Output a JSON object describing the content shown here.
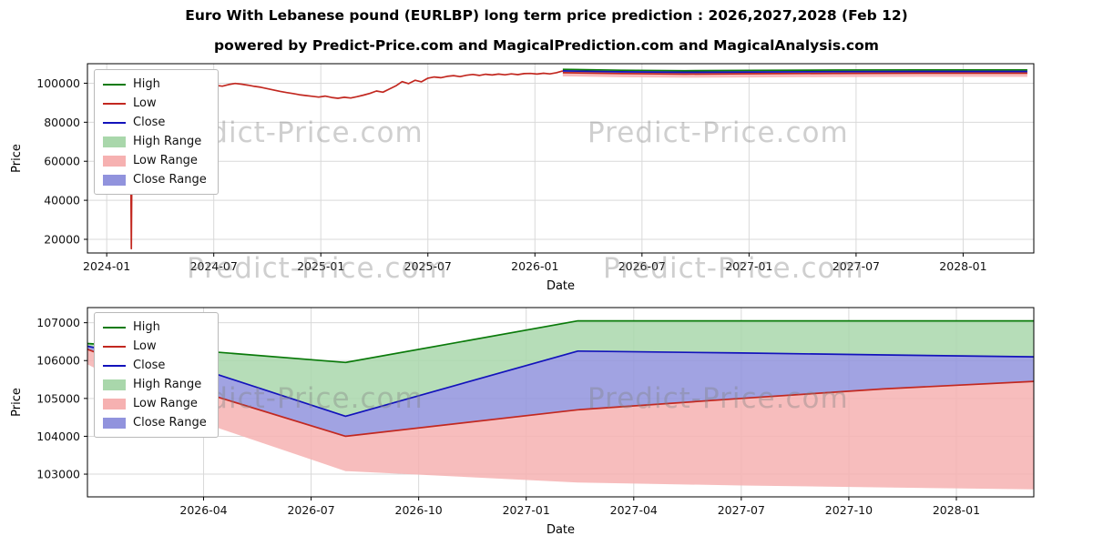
{
  "page": {
    "title": "Euro With Lebanese pound (EURLBP) long term price prediction : 2026,2027,2028 (Feb 12)",
    "subtitle": "powered by Predict-Price.com and MagicalPrediction.com and MagicalAnalysis.com",
    "watermark": "Predict-Price.com"
  },
  "colors": {
    "high": "#0a7a0a",
    "low": "#c22820",
    "close": "#1212bb",
    "high_range": "#a9d7ab",
    "low_range": "#f6b1b1",
    "close_range": "#9193dd",
    "grid": "#d9d9d9",
    "axis": "#000000",
    "text": "#111111",
    "watermark": "rgba(128,128,128,0.38)"
  },
  "chart_data": [
    {
      "type": "line",
      "title": "",
      "xlabel": "Date",
      "ylabel": "Price",
      "grid": true,
      "legend_position": "upper left",
      "xlim": [
        2023.91,
        2028.33
      ],
      "ylim": [
        13000,
        110000
      ],
      "xticks": [
        {
          "v": 2024.0,
          "label": "2024-01"
        },
        {
          "v": 2024.5,
          "label": "2024-07"
        },
        {
          "v": 2025.0,
          "label": "2025-01"
        },
        {
          "v": 2025.5,
          "label": "2025-07"
        },
        {
          "v": 2026.0,
          "label": "2026-01"
        },
        {
          "v": 2026.5,
          "label": "2026-07"
        },
        {
          "v": 2027.0,
          "label": "2027-01"
        },
        {
          "v": 2027.5,
          "label": "2027-07"
        },
        {
          "v": 2028.0,
          "label": "2028-01"
        }
      ],
      "yticks": [
        {
          "v": 20000,
          "label": "20000"
        },
        {
          "v": 40000,
          "label": "40000"
        },
        {
          "v": 60000,
          "label": "60000"
        },
        {
          "v": 80000,
          "label": "80000"
        },
        {
          "v": 100000,
          "label": "100000"
        }
      ],
      "legend": [
        {
          "label": "High",
          "kind": "line",
          "color_key": "high"
        },
        {
          "label": "Low",
          "kind": "line",
          "color_key": "low"
        },
        {
          "label": "Close",
          "kind": "line",
          "color_key": "close"
        },
        {
          "label": "High Range",
          "kind": "patch",
          "color_key": "high_range"
        },
        {
          "label": "Low Range",
          "kind": "patch",
          "color_key": "low_range"
        },
        {
          "label": "Close Range",
          "kind": "patch",
          "color_key": "close_range"
        }
      ],
      "bands": [
        {
          "name": "High Range",
          "color_key": "high_range",
          "x": [
            2026.13,
            2026.4,
            2026.7,
            2027.0,
            2027.4,
            2027.8,
            2028.3
          ],
          "top": [
            107100,
            106650,
            106400,
            106550,
            106750,
            106850,
            106850
          ],
          "bottom": [
            106300,
            105850,
            105600,
            105750,
            105950,
            106050,
            106050
          ]
        },
        {
          "name": "Low Range",
          "color_key": "low_range",
          "x": [
            2026.13,
            2026.4,
            2026.7,
            2027.0,
            2027.4,
            2027.8,
            2028.3
          ],
          "top": [
            105400,
            104950,
            104700,
            104850,
            105050,
            105150,
            105150
          ],
          "bottom": [
            103500,
            103050,
            102800,
            102950,
            103150,
            103250,
            103250
          ]
        },
        {
          "name": "Close Range",
          "color_key": "close_range",
          "x": [
            2026.13,
            2026.4,
            2026.7,
            2027.0,
            2027.4,
            2027.8,
            2028.3
          ],
          "top": [
            106300,
            105850,
            105600,
            105750,
            105950,
            106050,
            106050
          ],
          "bottom": [
            105400,
            104950,
            104700,
            104850,
            105050,
            105150,
            105150
          ]
        }
      ],
      "series": [
        {
          "name": "High",
          "color_key": "high",
          "segments": [
            {
              "x": [
                2024.375,
                2024.38,
                2024.385
              ],
              "y": [
                97200,
                101000,
                97600
              ]
            },
            {
              "x": [
                2026.13,
                2026.4,
                2026.7,
                2027.0,
                2027.4,
                2027.8,
                2028.3
              ],
              "y": [
                107100,
                106650,
                106400,
                106550,
                106750,
                106850,
                106850
              ]
            }
          ]
        },
        {
          "name": "Low",
          "color_key": "low",
          "segments": [
            {
              "x": [
                2024.11,
                2024.115,
                2024.12,
                2024.15,
                2024.18,
                2024.21,
                2024.24,
                2024.27,
                2024.3,
                2024.33,
                2024.36,
                2024.39,
                2024.42,
                2024.45,
                2024.48,
                2024.51,
                2024.54,
                2024.57,
                2024.6,
                2024.63,
                2024.66,
                2024.69,
                2024.72,
                2024.75,
                2024.78,
                2024.81,
                2024.84,
                2024.87,
                2024.9,
                2024.93,
                2024.96,
                2024.99,
                2025.02,
                2025.05,
                2025.08,
                2025.11,
                2025.14,
                2025.17,
                2025.2,
                2025.23,
                2025.26,
                2025.29,
                2025.32,
                2025.35,
                2025.38,
                2025.41,
                2025.44,
                2025.47,
                2025.5,
                2025.53,
                2025.56,
                2025.59,
                2025.62,
                2025.65,
                2025.68,
                2025.71,
                2025.74,
                2025.77,
                2025.8,
                2025.83,
                2025.86,
                2025.89,
                2025.92,
                2025.95,
                2025.98,
                2026.01,
                2026.04,
                2026.07,
                2026.1,
                2026.13
              ],
              "y": [
                96500,
                15200,
                97000,
                96600,
                97300,
                96800,
                97500,
                97000,
                97800,
                97200,
                97900,
                97400,
                98100,
                97700,
                98400,
                98900,
                98500,
                99300,
                99900,
                99500,
                99000,
                98400,
                97900,
                97200,
                96500,
                95800,
                95200,
                94700,
                94100,
                93700,
                93300,
                92900,
                93400,
                92700,
                92300,
                92800,
                92400,
                93100,
                93900,
                94800,
                96000,
                95400,
                97000,
                98600,
                100800,
                99800,
                101500,
                100700,
                102600,
                103200,
                102800,
                103500,
                103900,
                103400,
                104100,
                104500,
                104000,
                104600,
                104200,
                104700,
                104300,
                104800,
                104400,
                104900,
                105000,
                104700,
                105100,
                104800,
                105400,
                106300
              ]
            },
            {
              "x": [
                2026.13,
                2026.4,
                2026.7,
                2027.0,
                2027.4,
                2027.8,
                2028.3
              ],
              "y": [
                105400,
                104950,
                104700,
                104850,
                105050,
                105150,
                105150
              ]
            }
          ]
        },
        {
          "name": "Close",
          "color_key": "close",
          "segments": [
            {
              "x": [
                2026.13,
                2026.4,
                2026.7,
                2027.0,
                2027.4,
                2027.8,
                2028.3
              ],
              "y": [
                106300,
                105850,
                105600,
                105750,
                105950,
                106050,
                106050
              ]
            }
          ]
        }
      ]
    },
    {
      "type": "line",
      "title": "",
      "xlabel": "Date",
      "ylabel": "Price",
      "grid": true,
      "legend_position": "upper left",
      "xlim": [
        2025.98,
        2028.18
      ],
      "ylim": [
        102400,
        107400
      ],
      "xticks": [
        {
          "v": 2026.25,
          "label": "2026-04"
        },
        {
          "v": 2026.5,
          "label": "2026-07"
        },
        {
          "v": 2026.75,
          "label": "2026-10"
        },
        {
          "v": 2027.0,
          "label": "2027-01"
        },
        {
          "v": 2027.25,
          "label": "2027-04"
        },
        {
          "v": 2027.5,
          "label": "2027-07"
        },
        {
          "v": 2027.75,
          "label": "2027-10"
        },
        {
          "v": 2028.0,
          "label": "2028-01"
        }
      ],
      "yticks": [
        {
          "v": 103000,
          "label": "103000"
        },
        {
          "v": 104000,
          "label": "104000"
        },
        {
          "v": 105000,
          "label": "105000"
        },
        {
          "v": 106000,
          "label": "106000"
        },
        {
          "v": 107000,
          "label": "107000"
        }
      ],
      "legend": [
        {
          "label": "High",
          "kind": "line",
          "color_key": "high"
        },
        {
          "label": "Low",
          "kind": "line",
          "color_key": "low"
        },
        {
          "label": "Close",
          "kind": "line",
          "color_key": "close"
        },
        {
          "label": "High Range",
          "kind": "patch",
          "color_key": "high_range"
        },
        {
          "label": "Low Range",
          "kind": "patch",
          "color_key": "low_range"
        },
        {
          "label": "Close Range",
          "kind": "patch",
          "color_key": "close_range"
        }
      ],
      "bands": [
        {
          "name": "High Range",
          "color_key": "high_range",
          "x": [
            2025.98,
            2026.25,
            2026.58,
            2027.12,
            2027.5,
            2027.83,
            2028.18
          ],
          "top": [
            106450,
            106250,
            105950,
            107050,
            107050,
            107050,
            107050
          ],
          "bottom": [
            106380,
            105750,
            104530,
            106250,
            106200,
            106150,
            106100
          ]
        },
        {
          "name": "Low Range",
          "color_key": "low_range",
          "x": [
            2025.98,
            2026.25,
            2026.58,
            2027.12,
            2027.5,
            2027.83,
            2028.18
          ],
          "top": [
            106300,
            105150,
            104000,
            104700,
            105000,
            105250,
            105450
          ],
          "bottom": [
            105900,
            104350,
            103080,
            102780,
            102700,
            102650,
            102600
          ]
        },
        {
          "name": "Close Range",
          "color_key": "close_range",
          "x": [
            2025.98,
            2026.25,
            2026.58,
            2027.12,
            2027.5,
            2027.83,
            2028.18
          ],
          "top": [
            106380,
            105750,
            104530,
            106250,
            106200,
            106150,
            106100
          ],
          "bottom": [
            106300,
            105150,
            104000,
            104700,
            105000,
            105250,
            105450
          ]
        }
      ],
      "series": [
        {
          "name": "High",
          "color_key": "high",
          "segments": [
            {
              "x": [
                2025.98,
                2026.25,
                2026.58,
                2027.12,
                2027.5,
                2027.83,
                2028.18
              ],
              "y": [
                106450,
                106250,
                105950,
                107050,
                107050,
                107050,
                107050
              ]
            }
          ]
        },
        {
          "name": "Low",
          "color_key": "low",
          "segments": [
            {
              "x": [
                2025.98,
                2026.25,
                2026.58,
                2027.12,
                2027.5,
                2027.83,
                2028.18
              ],
              "y": [
                106300,
                105150,
                104000,
                104700,
                105000,
                105250,
                105450
              ]
            }
          ]
        },
        {
          "name": "Close",
          "color_key": "close",
          "segments": [
            {
              "x": [
                2025.98,
                2026.25,
                2026.58,
                2027.12,
                2027.5,
                2027.83,
                2028.18
              ],
              "y": [
                106380,
                105750,
                104530,
                106250,
                106200,
                106150,
                106100
              ]
            }
          ]
        }
      ]
    }
  ]
}
